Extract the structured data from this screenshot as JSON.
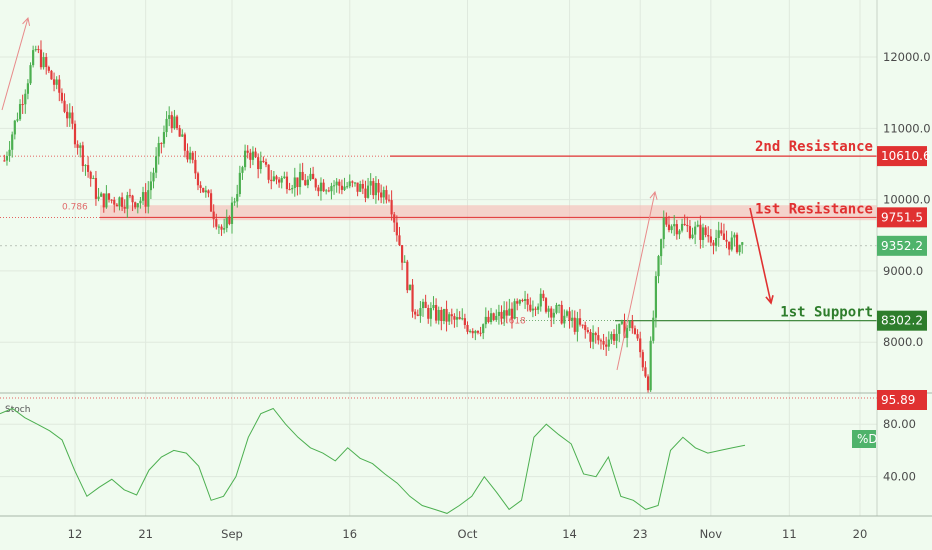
{
  "colors": {
    "background": "#f0fbef",
    "up": "#4caf50",
    "down": "#e23b3b",
    "resistance": "#e03131",
    "support": "#2e7d2c",
    "current": "#4fb36b",
    "stoch": "#4caf50",
    "grid": "#dfe9de",
    "axis_text": "#4a4a4a"
  },
  "chart_data": [
    {
      "type": "candlestick",
      "title": "",
      "y_axis": {
        "ticks": [
          "12000.0",
          "11000.0",
          "10000.0",
          "9000.0",
          "8000.0"
        ],
        "range": [
          7400,
          12800
        ]
      },
      "x_axis": {
        "ticks": [
          "12",
          "21",
          "Sep",
          "16",
          "Oct",
          "14",
          "23",
          "Nov",
          "11",
          "20"
        ]
      },
      "price_anchors": [
        {
          "x": "Aug 3",
          "close": 10550
        },
        {
          "x": "Aug 7",
          "close": 12100
        },
        {
          "x": "Aug 10",
          "close": 11500
        },
        {
          "x": "Aug 15",
          "close": 10000
        },
        {
          "x": "Aug 21",
          "close": 10000
        },
        {
          "x": "Aug 24",
          "close": 11200
        },
        {
          "x": "Aug 31",
          "close": 9500
        },
        {
          "x": "Sep 3",
          "close": 10700
        },
        {
          "x": "Sep 6",
          "close": 10300
        },
        {
          "x": "Sep 15",
          "close": 10200
        },
        {
          "x": "Sep 21",
          "close": 10100
        },
        {
          "x": "Sep 24",
          "close": 8500
        },
        {
          "x": "Oct 2",
          "close": 8200
        },
        {
          "x": "Oct 10",
          "close": 8600
        },
        {
          "x": "Oct 18",
          "close": 8000
        },
        {
          "x": "Oct 22",
          "close": 8250
        },
        {
          "x": "Oct 24",
          "close": 7450
        },
        {
          "x": "Oct 25",
          "close": 8800
        },
        {
          "x": "Oct 26",
          "close": 9700
        },
        {
          "x": "Nov 5",
          "close": 9352
        }
      ],
      "levels": [
        {
          "label": "2nd Resistance",
          "value": "10610.6"
        },
        {
          "label": "1st Resistance",
          "value": "9751.5"
        },
        {
          "label": "1st Support",
          "value": "8302.2"
        }
      ],
      "current_price": "9352.2",
      "fib_labels": [
        "0.786",
        "0.618"
      ]
    },
    {
      "type": "line",
      "title": "Stoch",
      "series": [
        {
          "name": "%D",
          "values": [
            88,
            92,
            85,
            80,
            75,
            68,
            45,
            25,
            32,
            38,
            30,
            26,
            45,
            55,
            60,
            58,
            48,
            22,
            25,
            40,
            70,
            88,
            92,
            80,
            70,
            62,
            58,
            52,
            62,
            54,
            50,
            42,
            35,
            25,
            18,
            15,
            12,
            18,
            25,
            40,
            28,
            15,
            22,
            70,
            80,
            72,
            65,
            42,
            40,
            55,
            25,
            22,
            15,
            18,
            60,
            70,
            62,
            58,
            60,
            62,
            64
          ]
        }
      ],
      "y_axis": {
        "ticks": [
          "80.00",
          "40.00"
        ],
        "range": [
          10,
          100
        ]
      },
      "overbought_label": "95.89",
      "legend": "%D"
    }
  ]
}
